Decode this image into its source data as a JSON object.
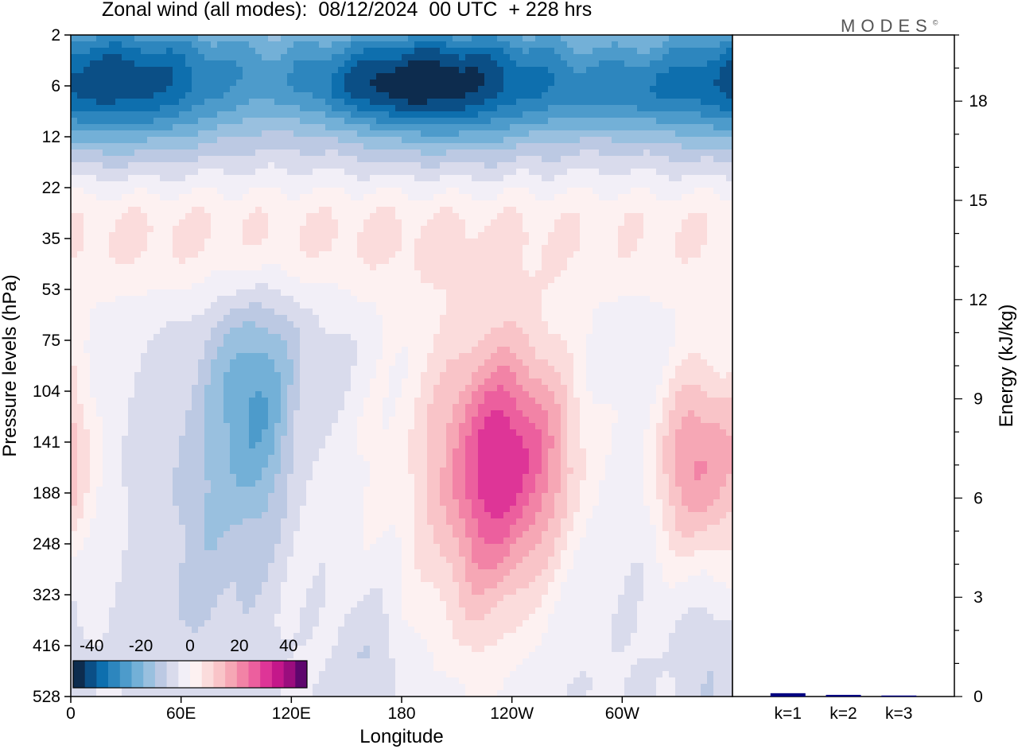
{
  "chart_data": [
    {
      "type": "heatmap",
      "title": "Zonal wind (all modes):  08/12/2024  00 UTC  + 228 hrs",
      "xlabel": "Longitude",
      "ylabel": "Pressure levels (hPa)",
      "x_tick_labels": [
        "0",
        "60E",
        "120E",
        "180",
        "120W",
        "60W"
      ],
      "x_tick_values_deg": [
        0,
        60,
        120,
        180,
        240,
        300
      ],
      "xlim_deg": [
        0,
        360
      ],
      "y_tick_labels": [
        "2",
        "6",
        "12",
        "22",
        "35",
        "53",
        "75",
        "104",
        "141",
        "188",
        "248",
        "323",
        "416",
        "528"
      ],
      "y_scale": "levels",
      "colorbar": {
        "tick_labels": [
          "-40",
          "-20",
          "0",
          "20",
          "40"
        ],
        "range": [
          -45,
          45
        ],
        "step": 5,
        "colors": [
          "#0d2c4e",
          "#0b4f86",
          "#0e6fae",
          "#2d86be",
          "#4d9bcb",
          "#73b0d7",
          "#99c0df",
          "#bcc9e3",
          "#d9dbec",
          "#f2eff7",
          "#fdf1f1",
          "#fbdcdc",
          "#f9c4c8",
          "#f6a7b5",
          "#f283a6",
          "#ec5f9e",
          "#de3597",
          "#c4178a",
          "#9b0d7e",
          "#5e066d"
        ]
      },
      "features": [
        {
          "lon": 0,
          "lon2": 360,
          "level": 6,
          "value": -28
        },
        {
          "lon": 165,
          "level": 6,
          "value": -38
        },
        {
          "lon": 300,
          "level": 6,
          "value": -38
        },
        {
          "lon": 240,
          "level": 141,
          "value": 32
        },
        {
          "lon": 340,
          "level": 141,
          "value": 26
        },
        {
          "lon": 100,
          "level": 141,
          "value": -18
        },
        {
          "lon": 60,
          "lon2": 180,
          "level": 35,
          "value": 10
        },
        {
          "lon": 0,
          "level": 141,
          "value": 8
        }
      ]
    },
    {
      "type": "bar",
      "ylabel": "Energy (kJ/kg)",
      "categories": [
        "k=1",
        "k=2",
        "k=3"
      ],
      "values": [
        0.1,
        0.05,
        0.03
      ],
      "ylim": [
        0,
        20
      ],
      "y_tick_labels": [
        "0",
        "3",
        "6",
        "9",
        "12",
        "15",
        "18"
      ],
      "y_tick_values": [
        0,
        3,
        6,
        9,
        12,
        15,
        18
      ],
      "bar_color": "#000080"
    }
  ],
  "logo": {
    "text": "MODES",
    "mark": "©"
  }
}
